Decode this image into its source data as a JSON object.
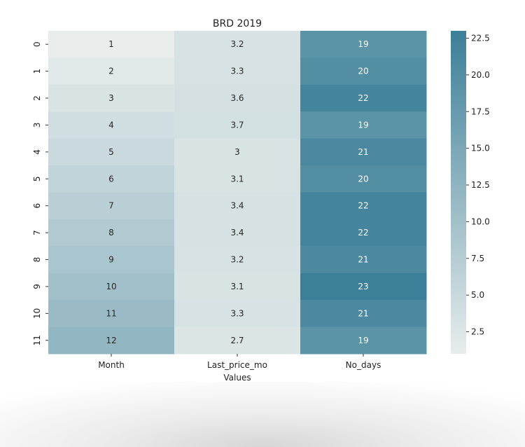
{
  "chart_data": {
    "type": "heatmap",
    "title": "BRD 2019",
    "xlabel": "Values",
    "ylabel": "",
    "columns": [
      "Month",
      "Last_price_mo",
      "No_days"
    ],
    "row_labels": [
      "0",
      "1",
      "2",
      "3",
      "4",
      "5",
      "6",
      "7",
      "8",
      "9",
      "10",
      "11"
    ],
    "values": [
      [
        1,
        3.2,
        19
      ],
      [
        2,
        3.3,
        20
      ],
      [
        3,
        3.6,
        22
      ],
      [
        4,
        3.7,
        19
      ],
      [
        5,
        3,
        21
      ],
      [
        6,
        3.1,
        20
      ],
      [
        7,
        3.4,
        22
      ],
      [
        8,
        3.4,
        22
      ],
      [
        9,
        3.2,
        21
      ],
      [
        10,
        3.1,
        23
      ],
      [
        11,
        3.3,
        21
      ],
      [
        12,
        2.7,
        19
      ]
    ],
    "annotations": [
      [
        "1",
        "3.2",
        "19"
      ],
      [
        "2",
        "3.3",
        "20"
      ],
      [
        "3",
        "3.6",
        "22"
      ],
      [
        "4",
        "3.7",
        "19"
      ],
      [
        "5",
        "3",
        "21"
      ],
      [
        "6",
        "3.1",
        "20"
      ],
      [
        "7",
        "3.4",
        "22"
      ],
      [
        "8",
        "3.4",
        "22"
      ],
      [
        "9",
        "3.2",
        "21"
      ],
      [
        "10",
        "3.1",
        "23"
      ],
      [
        "11",
        "3.3",
        "21"
      ],
      [
        "12",
        "2.7",
        "19"
      ]
    ],
    "colorbar": {
      "range": [
        1,
        23
      ],
      "ticks": [
        "2.5",
        "5.0",
        "7.5",
        "10.0",
        "12.5",
        "15.0",
        "17.5",
        "20.0",
        "22.5"
      ],
      "color_low": "#e8edec",
      "color_high": "#3c7f98"
    }
  }
}
